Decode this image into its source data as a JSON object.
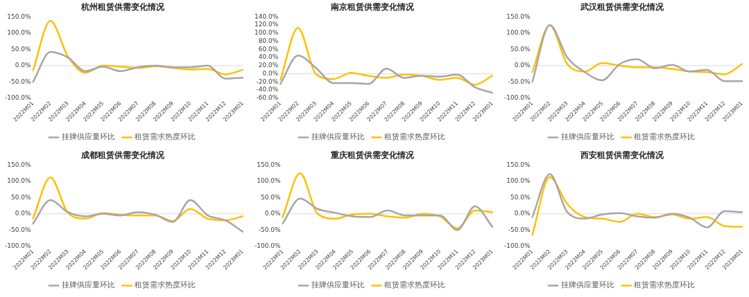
{
  "chart_data": [
    {
      "type": "line",
      "ref_lines": [
        {
          "axis": "y",
          "value": 0,
          "color": "#d9d9d9"
        }
      ],
      "title": "杭州租赁供需变化情况",
      "categories": [
        "2022M01",
        "2022M02",
        "2022M03",
        "2022M04",
        "2022M05",
        "2022M06",
        "2022M07",
        "2022M08",
        "2022M09",
        "2022M10",
        "2022M11",
        "2022M12",
        "2023M01"
      ],
      "series": [
        {
          "name": "挂牌供应量环比",
          "color": "#a6a6a6",
          "values": [
            -50,
            42,
            25,
            -17,
            -3,
            -17,
            -5,
            0,
            -5,
            -5,
            0,
            -40,
            -37
          ]
        },
        {
          "name": "租赁需求热度环比",
          "color": "#ffc000",
          "values": [
            -15,
            138,
            28,
            -22,
            0,
            -3,
            -7,
            -2,
            -7,
            -12,
            -10,
            -27,
            -13
          ]
        }
      ],
      "ylim": [
        -100,
        150
      ],
      "yticks": [
        {
          "value": -100,
          "label": "-100.0%"
        },
        {
          "value": -50,
          "label": "-50.0%"
        },
        {
          "value": 0,
          "label": "0.0%"
        },
        {
          "value": 50,
          "label": "50.0%"
        },
        {
          "value": 100,
          "label": "100.0%"
        },
        {
          "value": 150,
          "label": "150.0%"
        }
      ],
      "legend": "bottom",
      "grid": false,
      "marker": "none"
    },
    {
      "type": "line",
      "ref_lines": [
        {
          "axis": "y",
          "value": 0,
          "color": "#d9d9d9"
        }
      ],
      "title": "南京租赁供需变化情况",
      "categories": [
        "2022M01",
        "2022M02",
        "2022M03",
        "2022M04",
        "2022M05",
        "2022M06",
        "2022M07",
        "2022M08",
        "2022M09",
        "2022M10",
        "2022M11",
        "2022M12",
        "2023M01"
      ],
      "series": [
        {
          "name": "挂牌供应量环比",
          "color": "#a6a6a6",
          "values": [
            -25,
            45,
            15,
            -23,
            -23,
            -25,
            13,
            -10,
            -5,
            -7,
            -2,
            -33,
            -47
          ]
        },
        {
          "name": "租赁需求热度环比",
          "color": "#ffc000",
          "values": [
            -15,
            113,
            0,
            -13,
            2,
            -5,
            -10,
            -2,
            -5,
            -15,
            -10,
            -27,
            -5
          ]
        }
      ],
      "ylim": [
        -60,
        140
      ],
      "yticks": [
        {
          "value": -60,
          "label": "-60.0%"
        },
        {
          "value": -40,
          "label": "-40.0%"
        },
        {
          "value": -20,
          "label": "-20.0%"
        },
        {
          "value": 0,
          "label": "0.0%"
        },
        {
          "value": 20,
          "label": "20.0%"
        },
        {
          "value": 40,
          "label": "40.0%"
        },
        {
          "value": 60,
          "label": "60.0%"
        },
        {
          "value": 80,
          "label": "80.0%"
        },
        {
          "value": 100,
          "label": "100.0%"
        },
        {
          "value": 120,
          "label": "120.0%"
        },
        {
          "value": 140,
          "label": "140.0%"
        }
      ],
      "legend": "bottom",
      "grid": false,
      "marker": "none"
    },
    {
      "type": "line",
      "ref_lines": [
        {
          "axis": "y",
          "value": 0,
          "color": "#d9d9d9"
        }
      ],
      "title": "武汉租赁供需变化情况",
      "categories": [
        "2022M01",
        "2022M02",
        "2022M03",
        "2022M04",
        "2022M05",
        "2022M06",
        "2022M07",
        "2022M08",
        "2022M09",
        "2022M10",
        "2022M11",
        "2022M12",
        "2023M01"
      ],
      "series": [
        {
          "name": "挂牌供应量环比",
          "color": "#a6a6a6",
          "values": [
            -50,
            125,
            25,
            -20,
            -45,
            5,
            20,
            -8,
            2,
            -18,
            -13,
            -48,
            -48
          ]
        },
        {
          "name": "租赁需求热度环比",
          "color": "#ffc000",
          "values": [
            -20,
            125,
            5,
            -18,
            8,
            0,
            -5,
            -5,
            -10,
            -18,
            -20,
            -27,
            5
          ]
        }
      ],
      "ylim": [
        -100,
        150
      ],
      "yticks": [
        {
          "value": -100,
          "label": "-100.0%"
        },
        {
          "value": -50,
          "label": "-50.0%"
        },
        {
          "value": 0,
          "label": "0.0%"
        },
        {
          "value": 50,
          "label": "50.0%"
        },
        {
          "value": 100,
          "label": "100.0%"
        },
        {
          "value": 150,
          "label": "150.0%"
        }
      ],
      "legend": "bottom",
      "grid": false,
      "marker": "none"
    },
    {
      "type": "line",
      "ref_lines": [
        {
          "axis": "y",
          "value": 0,
          "color": "#d9d9d9"
        }
      ],
      "title": "成都租赁供需变化情况",
      "categories": [
        "2022M01",
        "2022M02",
        "2022M03",
        "2022M04",
        "2022M05",
        "2022M06",
        "2022M07",
        "2022M08",
        "2022M09",
        "2022M10",
        "2022M11",
        "2022M12",
        "2023M01"
      ],
      "series": [
        {
          "name": "挂牌供应量环比",
          "color": "#a6a6a6",
          "values": [
            -30,
            42,
            5,
            -8,
            0,
            -5,
            5,
            -3,
            -25,
            42,
            -5,
            -20,
            -55
          ]
        },
        {
          "name": "租赁需求热度环比",
          "color": "#ffc000",
          "values": [
            -15,
            112,
            3,
            -15,
            2,
            -3,
            -5,
            -5,
            -22,
            15,
            -15,
            -20,
            -8
          ]
        }
      ],
      "ylim": [
        -100,
        150
      ],
      "yticks": [
        {
          "value": -100,
          "label": "-100.0%"
        },
        {
          "value": -50,
          "label": "-50.0%"
        },
        {
          "value": 0,
          "label": "0.0%"
        },
        {
          "value": 50,
          "label": "50.0%"
        },
        {
          "value": 100,
          "label": "100.0%"
        },
        {
          "value": 150,
          "label": "150.0%"
        }
      ],
      "legend": "bottom",
      "grid": false,
      "marker": "none"
    },
    {
      "type": "line",
      "ref_lines": [
        {
          "axis": "y",
          "value": 0,
          "color": "#d9d9d9"
        }
      ],
      "title": "重庆租赁供需变化情况",
      "categories": [
        "2022M01",
        "2022M02",
        "2022M03",
        "2022M04",
        "2022M05",
        "2022M06",
        "2022M07",
        "2022M08",
        "2022M09",
        "2022M10",
        "2022M11",
        "2022M12",
        "2023M01"
      ],
      "series": [
        {
          "name": "挂牌供应量环比",
          "color": "#a6a6a6",
          "values": [
            -30,
            47,
            15,
            3,
            -8,
            -10,
            10,
            -5,
            -5,
            -5,
            -50,
            23,
            -40
          ]
        },
        {
          "name": "租赁需求热度环比",
          "color": "#ffc000",
          "values": [
            -10,
            125,
            0,
            -15,
            -2,
            0,
            -8,
            -12,
            0,
            -8,
            -45,
            10,
            5
          ]
        }
      ],
      "ylim": [
        -100,
        150
      ],
      "yticks": [
        {
          "value": -100,
          "label": "-100.0%"
        },
        {
          "value": -50,
          "label": "-50.0%"
        },
        {
          "value": 0,
          "label": "0.0%"
        },
        {
          "value": 50,
          "label": "50.0%"
        },
        {
          "value": 100,
          "label": "100.0%"
        },
        {
          "value": 150,
          "label": "150.0%"
        }
      ],
      "legend": "bottom",
      "grid": false,
      "marker": "none"
    },
    {
      "type": "line",
      "ref_lines": [
        {
          "axis": "y",
          "value": 0,
          "color": "#d9d9d9"
        }
      ],
      "title": "西安租赁供需变化情况",
      "categories": [
        "2022M01",
        "2022M02",
        "2022M03",
        "2022M04",
        "2022M05",
        "2022M06",
        "2022M07",
        "2022M08",
        "2022M09",
        "2022M10",
        "2022M11",
        "2022M12",
        "2023M01"
      ],
      "series": [
        {
          "name": "挂牌供应量环比",
          "color": "#a6a6a6",
          "values": [
            -10,
            122,
            5,
            -15,
            -2,
            2,
            -8,
            -12,
            0,
            -12,
            -42,
            8,
            5
          ]
        },
        {
          "name": "租赁需求热度环比",
          "color": "#ffc000",
          "values": [
            -65,
            113,
            30,
            -10,
            -15,
            -25,
            0,
            -10,
            -2,
            -15,
            -10,
            -38,
            -40
          ]
        }
      ],
      "ylim": [
        -100,
        150
      ],
      "yticks": [
        {
          "value": -100,
          "label": "-100.0%"
        },
        {
          "value": -50,
          "label": "-50.0%"
        },
        {
          "value": 0,
          "label": "0.0%"
        },
        {
          "value": 50,
          "label": "50.0%"
        },
        {
          "value": 100,
          "label": "100.0%"
        },
        {
          "value": 150,
          "label": "150.0%"
        }
      ],
      "legend": "bottom",
      "grid": false,
      "marker": "none"
    }
  ]
}
